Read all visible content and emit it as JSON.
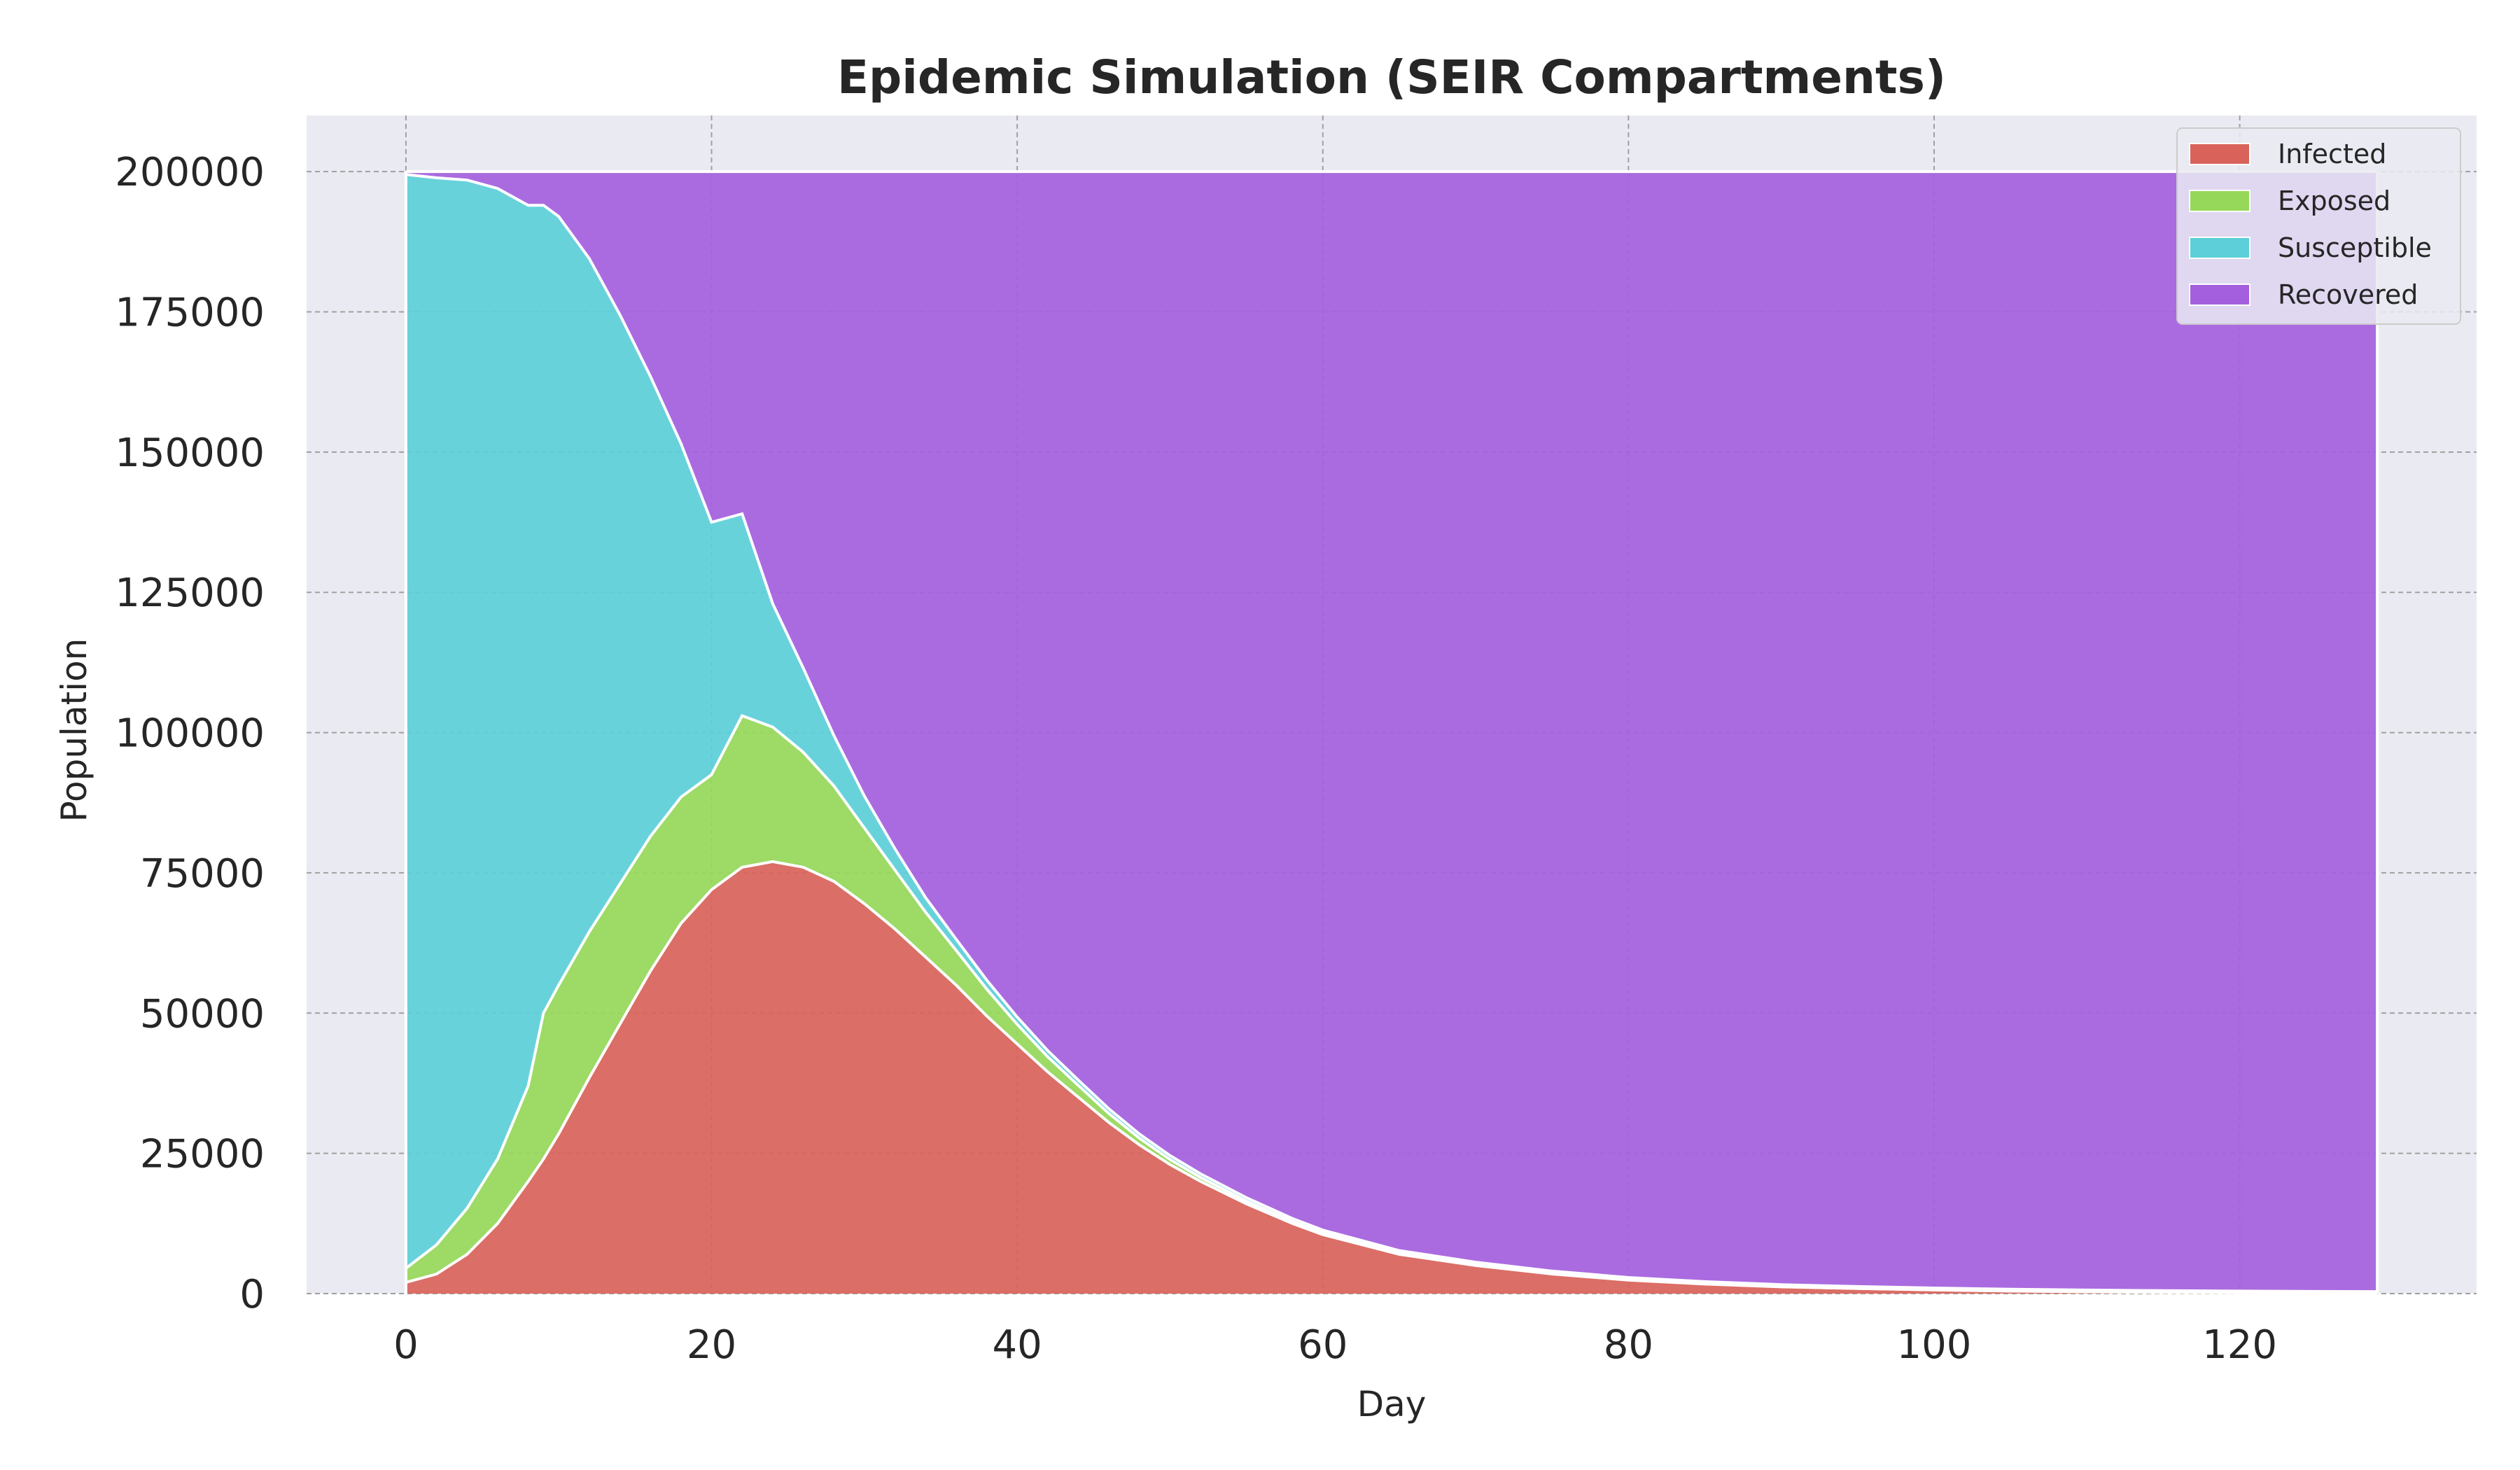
{
  "chart_data": {
    "type": "area",
    "stacked": true,
    "title": "Epidemic Simulation (SEIR Compartments)",
    "xlabel": "Day",
    "ylabel": "Population",
    "xlim": [
      -6.5,
      135.5
    ],
    "ylim": [
      0,
      210000
    ],
    "xticks": [
      0,
      20,
      40,
      60,
      80,
      100,
      120
    ],
    "yticks": [
      0,
      25000,
      50000,
      75000,
      100000,
      125000,
      150000,
      175000,
      200000
    ],
    "grid": true,
    "legend_position": "top-right",
    "stack_order": [
      "Infected",
      "Exposed",
      "Susceptible",
      "Recovered"
    ],
    "x": [
      0,
      2,
      4,
      6,
      8,
      9,
      10,
      12,
      14,
      16,
      18,
      20,
      22,
      24,
      26,
      28,
      30,
      32,
      34,
      36,
      38,
      40,
      42,
      44,
      46,
      48,
      50,
      52,
      55,
      58,
      60,
      65,
      70,
      75,
      80,
      85,
      90,
      95,
      100,
      105,
      110,
      115,
      120,
      125,
      129
    ],
    "series": [
      {
        "name": "Infected",
        "color": "#d9635a",
        "values": [
          2000,
          3500,
          7000,
          12500,
          20000,
          24000,
          28500,
          38500,
          48000,
          57500,
          66000,
          72000,
          76000,
          77000,
          76000,
          73500,
          69500,
          65000,
          60000,
          55000,
          49500,
          44500,
          39500,
          35000,
          30500,
          26500,
          23000,
          20000,
          16000,
          12500,
          10500,
          7000,
          5000,
          3500,
          2400,
          1700,
          1200,
          900,
          650,
          450,
          320,
          220,
          150,
          100,
          80
        ]
      },
      {
        "name": "Exposed",
        "color": "#96d85a",
        "values": [
          2500,
          5200,
          8200,
          11500,
          17000,
          26000,
          26500,
          26000,
          25000,
          24000,
          22500,
          20500,
          27000,
          24000,
          20500,
          17000,
          13500,
          10500,
          8000,
          6200,
          4800,
          3500,
          2700,
          2100,
          1600,
          1200,
          900,
          700,
          500,
          350,
          300,
          200,
          150,
          100,
          70,
          50,
          35,
          25,
          18,
          12,
          8,
          6,
          4,
          3,
          2
        ]
      },
      {
        "name": "Susceptible",
        "color": "#5ccfd9",
        "values": [
          195000,
          190200,
          183300,
          173000,
          157000,
          144000,
          137000,
          120000,
          101500,
          82000,
          63000,
          45000,
          36000,
          22000,
          15000,
          9000,
          5700,
          3800,
          2600,
          2000,
          1600,
          1300,
          1100,
          950,
          850,
          750,
          700,
          650,
          600,
          550,
          520,
          480,
          450,
          420,
          400,
          380,
          360,
          340,
          330,
          320,
          310,
          300,
          295,
          290,
          285
        ]
      },
      {
        "name": "Recovered",
        "color": "#a45fde",
        "values": [
          500,
          1100,
          1500,
          3000,
          6000,
          6000,
          8000,
          15500,
          25500,
          36500,
          48500,
          62500,
          61000,
          77000,
          88500,
          100500,
          111300,
          120700,
          129400,
          136800,
          144100,
          150700,
          156700,
          161950,
          167050,
          171550,
          175400,
          178650,
          182900,
          186600,
          188680,
          192320,
          194400,
          195980,
          197130,
          197870,
          198405,
          198735,
          199002,
          199218,
          199362,
          199474,
          199551,
          199607,
          199633
        ]
      }
    ]
  }
}
